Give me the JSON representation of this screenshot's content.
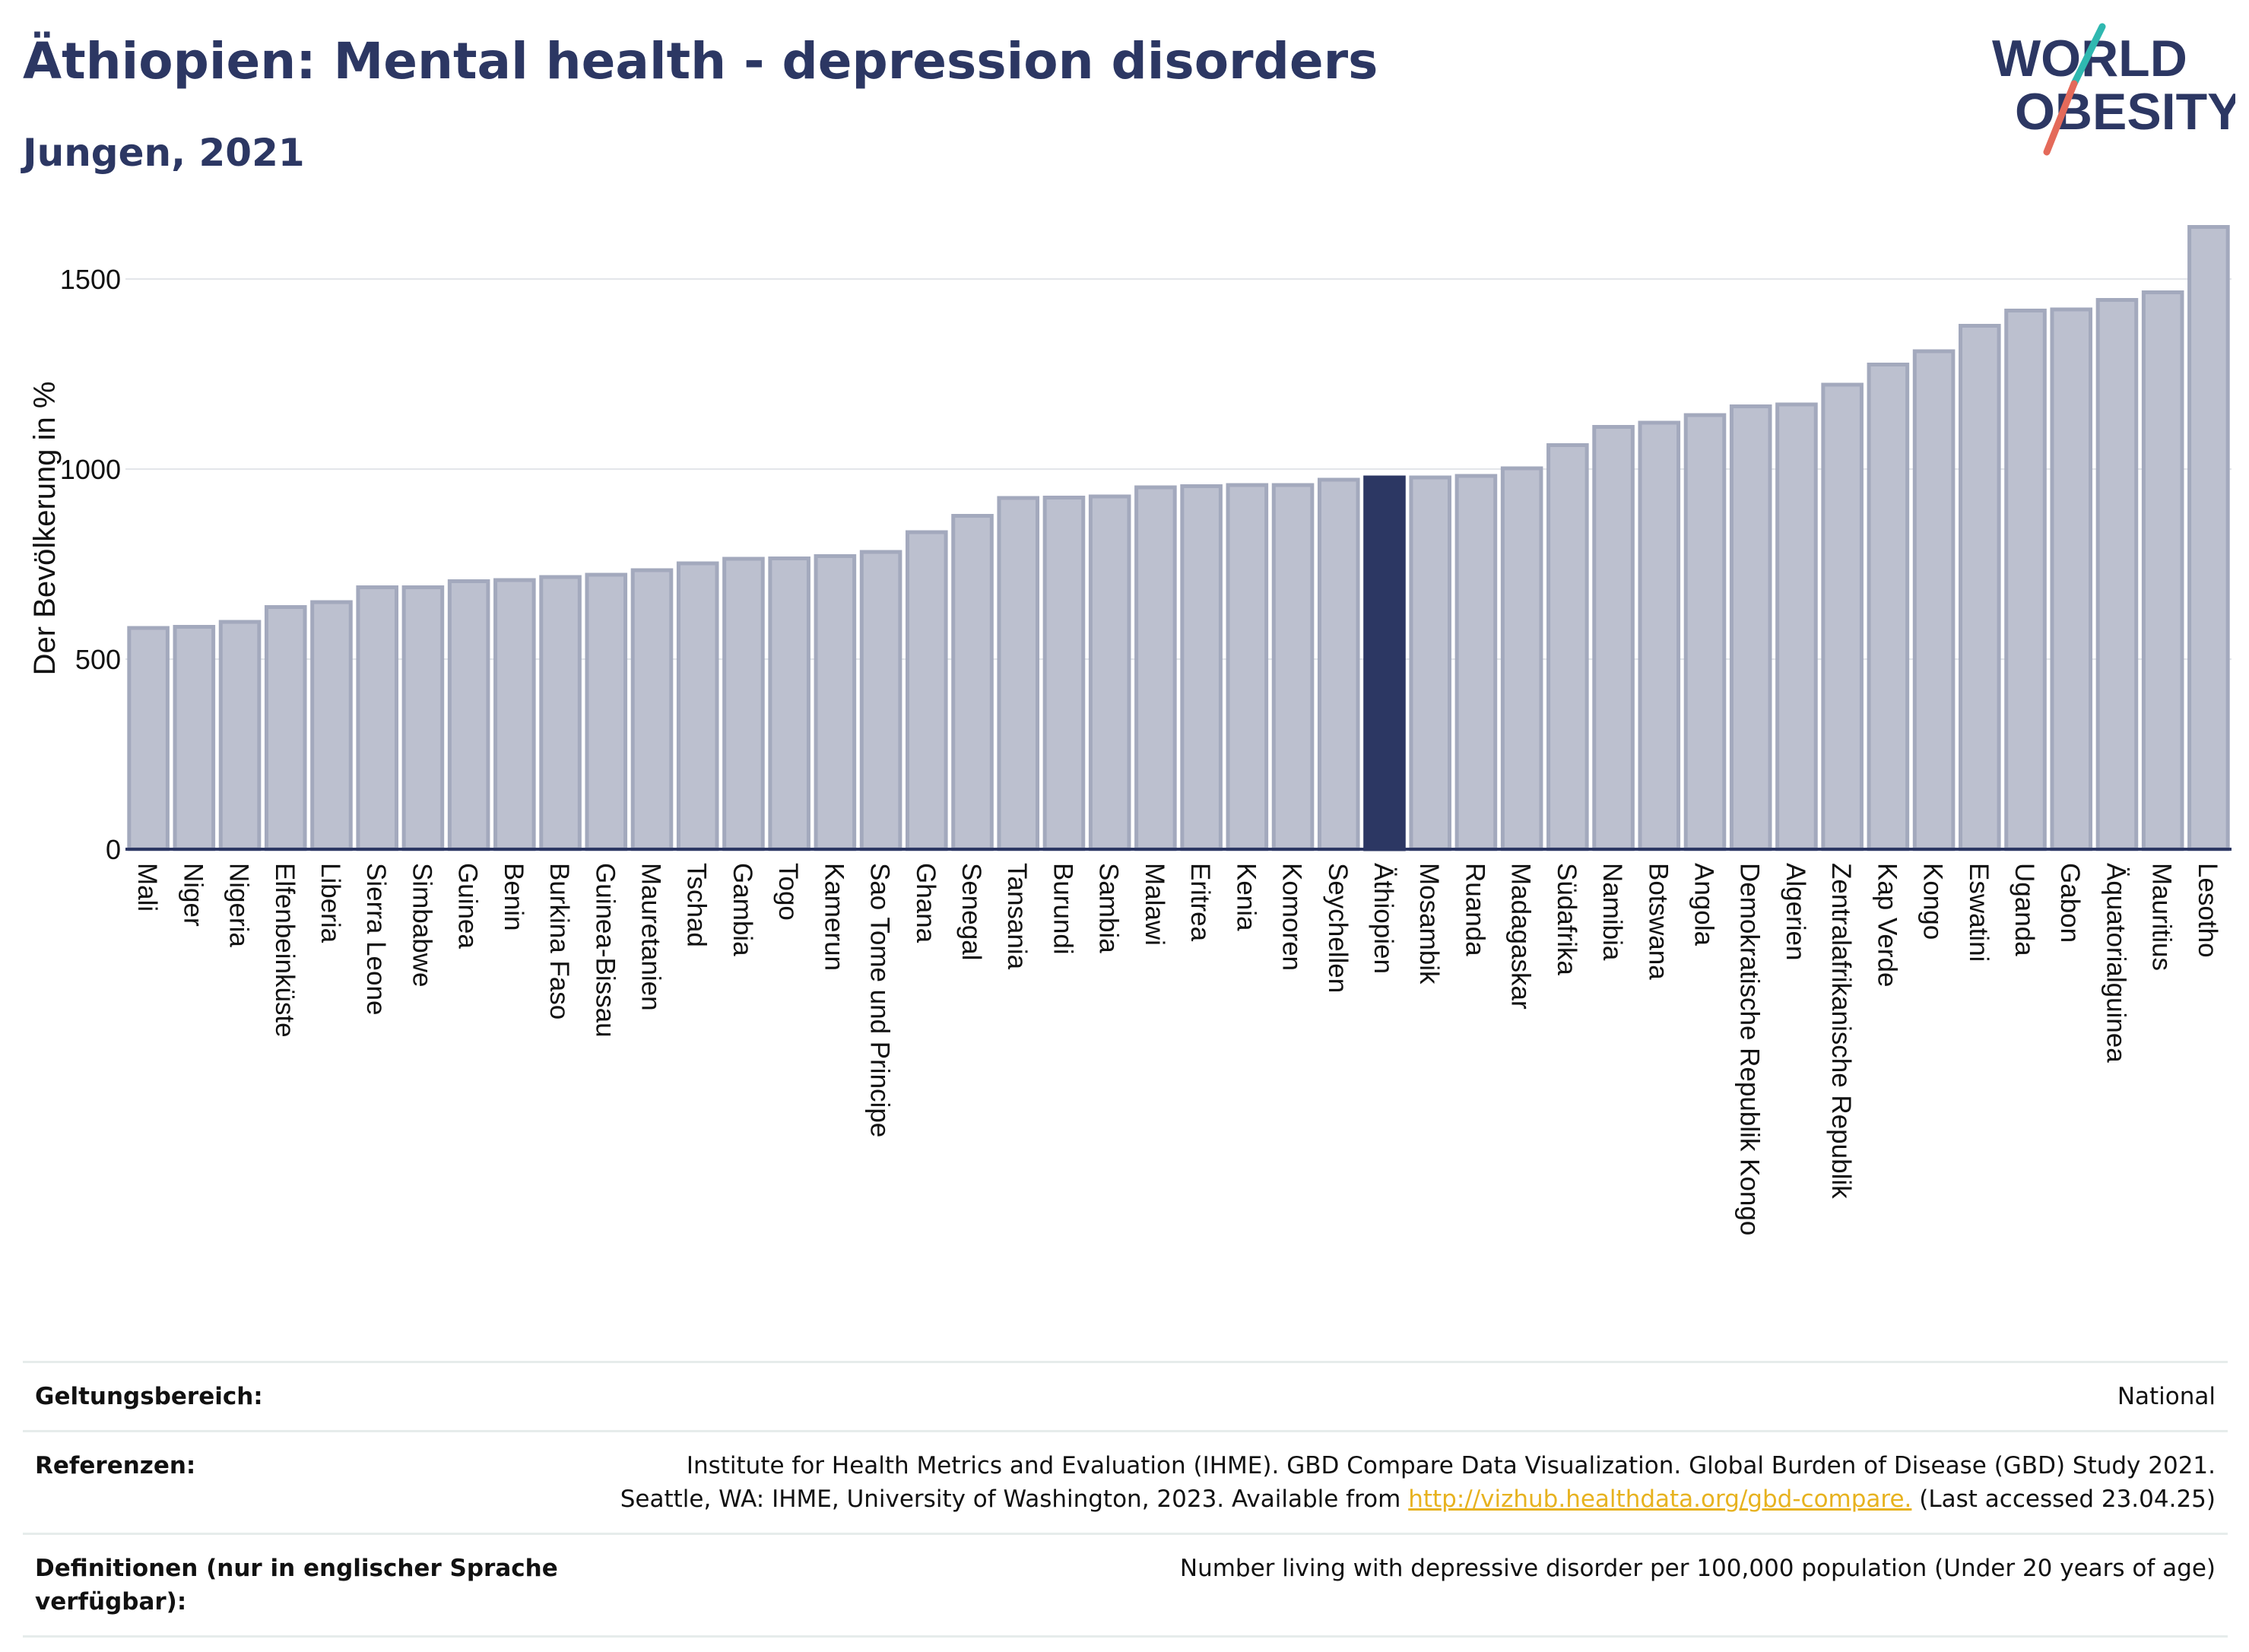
{
  "header": {
    "title": "Äthiopien: Mental health - depression disorders",
    "subtitle": "Jungen, 2021"
  },
  "logo": {
    "line1": "WORLD",
    "line2": "OBESITY",
    "colors": {
      "text": "#2c3763",
      "slash_teal": "#2fb8b0",
      "slash_red": "#e46a5a"
    }
  },
  "chart_data": {
    "type": "bar",
    "ylabel": "Der Bevölkerung in %",
    "xlabel": "",
    "ylim": [
      0,
      1650
    ],
    "yticks": [
      0,
      500,
      1000,
      1500
    ],
    "grid": true,
    "highlight": "Äthiopien",
    "colors": {
      "bar": "#bcc0cf",
      "bar_edge": "#a3a9bd",
      "highlight": "#2c3763"
    },
    "categories": [
      "Mali",
      "Niger",
      "Nigeria",
      "Elfenbeinküste",
      "Liberia",
      "Sierra Leone",
      "Simbabwe",
      "Guinea",
      "Benin",
      "Burkina Faso",
      "Guinea-Bissau",
      "Mauretanien",
      "Tschad",
      "Gambia",
      "Togo",
      "Kamerun",
      "Sao Tome und Principe",
      "Ghana",
      "Senegal",
      "Tansania",
      "Burundi",
      "Sambia",
      "Malawi",
      "Eritrea",
      "Kenia",
      "Komoren",
      "Seychellen",
      "Äthiopien",
      "Mosambik",
      "Ruanda",
      "Madagaskar",
      "Südafrika",
      "Namibia",
      "Botswana",
      "Angola",
      "Demokratische Republik Kongo",
      "Algerien",
      "Zentralafrikanische Republik",
      "Kap Verde",
      "Kongo",
      "Eswatini",
      "Uganda",
      "Gabon",
      "Äquatorialguinea",
      "Mauritius",
      "Lesotho"
    ],
    "values": [
      582,
      585,
      598,
      637,
      650,
      689,
      689,
      705,
      708,
      716,
      722,
      734,
      752,
      764,
      765,
      771,
      782,
      834,
      877,
      924,
      925,
      928,
      952,
      955,
      958,
      958,
      972,
      978,
      978,
      982,
      1002,
      1063,
      1111,
      1122,
      1142,
      1165,
      1170,
      1222,
      1275,
      1310,
      1377,
      1417,
      1420,
      1445,
      1465,
      1637
    ]
  },
  "info": {
    "scope_label": "Geltungsbereich:",
    "scope_value": "National",
    "ref_label": "Referenzen:",
    "ref_line1": "Institute for Health Metrics and Evaluation (IHME). GBD Compare Data Visualization. Global Burden of Disease (GBD) Study 2021.",
    "ref_line2_pre": "Seattle, WA: IHME, University of Washington, 2023. Available from ",
    "ref_link": "http://vizhub.healthdata.org/gbd-compare.",
    "ref_line2_post": " (Last accessed 23.04.25)",
    "def_label": "Definitionen (nur in englischer Sprache verfügbar):",
    "def_value": "Number living with depressive disorder per 100,000 population (Under 20 years of age)"
  }
}
